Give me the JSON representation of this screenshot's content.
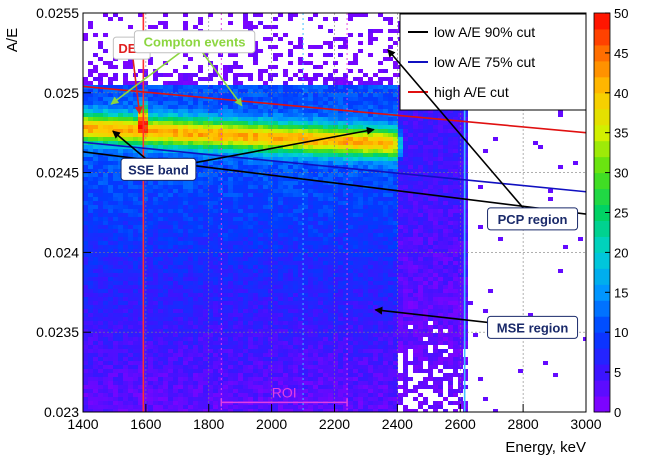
{
  "chart_data": {
    "type": "heatmap",
    "title": "",
    "xlabel": "Energy, keV",
    "ylabel": "A/E",
    "xlim": [
      1400,
      3000
    ],
    "ylim": [
      0.023,
      0.0255
    ],
    "x_ticks": [
      "1400",
      "1600",
      "1800",
      "2000",
      "2200",
      "2400",
      "2600",
      "2800",
      "3000"
    ],
    "y_ticks": [
      "0.023",
      "0.0235",
      "0.024",
      "0.0245",
      "0.025",
      "0.0255"
    ],
    "x_tick_values": [
      1400,
      1600,
      1800,
      2000,
      2200,
      2400,
      2600,
      2800,
      3000
    ],
    "y_tick_values": [
      0.023,
      0.0235,
      0.024,
      0.0245,
      0.025,
      0.0255
    ],
    "grid": true,
    "colorbar": {
      "min": 0,
      "max": 50,
      "ticks": [
        "0",
        "5",
        "10",
        "15",
        "20",
        "25",
        "30",
        "35",
        "40",
        "45",
        "50"
      ],
      "tick_values": [
        0,
        5,
        10,
        15,
        20,
        25,
        30,
        35,
        40,
        45,
        50
      ]
    },
    "legend": {
      "placement": "top-right",
      "entries": [
        {
          "label": "low A/E 90% cut",
          "color": "#000000"
        },
        {
          "label": "low A/E 75% cut",
          "color": "#1010c0"
        },
        {
          "label": "high A/E cut",
          "color": "#e01010"
        }
      ]
    },
    "cut_lines": [
      {
        "name": "low A/E 90% cut",
        "color": "#000000",
        "x": [
          1400,
          3000
        ],
        "y": [
          0.02463,
          0.02424
        ]
      },
      {
        "name": "low A/E 75% cut",
        "color": "#1010c0",
        "x": [
          1400,
          3000
        ],
        "y": [
          0.02469,
          0.02438
        ]
      },
      {
        "name": "high A/E cut",
        "color": "#e01010",
        "x": [
          1400,
          3000
        ],
        "y": [
          0.02504,
          0.02475
        ]
      }
    ],
    "reference_lines": [
      {
        "kind": "vertical",
        "x": 1592,
        "color": "#ff3030"
      },
      {
        "kind": "vertical",
        "x": 2614,
        "color": "#40c0ff"
      },
      {
        "kind": "vertical",
        "x": 1840,
        "color": "#e040e0",
        "dotted": true
      },
      {
        "kind": "vertical",
        "x": 2240,
        "color": "#e040e0",
        "dotted": true
      },
      {
        "kind": "vertical",
        "x": 2100,
        "color": "#40c0ff",
        "dotted": true
      }
    ],
    "roi": {
      "label": "ROI",
      "x": [
        1840,
        2240
      ],
      "y": 0.02306,
      "color": "#e040e0"
    },
    "annotations": [
      {
        "label": "DEP",
        "color": "#e02020",
        "box_x": 1555,
        "box_y": 0.02528,
        "arrow_to": [
          1580,
          0.02487
        ]
      },
      {
        "label": "Compton events",
        "color": "#8cd640",
        "box_x": 1755,
        "box_y": 0.02532,
        "arrow_to": [
          [
            1490,
            0.02493
          ],
          [
            1905,
            0.02492
          ]
        ]
      },
      {
        "label": "SSE band",
        "color": "#1a2a6a",
        "box_x": 1640,
        "box_y": 0.02452,
        "arrow_to": [
          [
            1495,
            0.02476
          ],
          [
            2325,
            0.02477
          ]
        ]
      },
      {
        "label": "PCP region",
        "color": "#1a2a6a",
        "box_x": 2830,
        "box_y": 0.02421,
        "arrow_to": [
          2370,
          0.02527
        ]
      },
      {
        "label": "MSE region",
        "color": "#1a2a6a",
        "box_x": 2830,
        "box_y": 0.02353,
        "arrow_to": [
          2330,
          0.02364
        ]
      }
    ]
  }
}
